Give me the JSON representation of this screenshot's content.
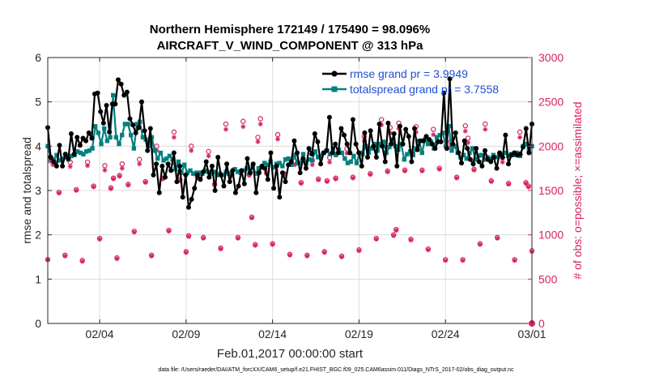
{
  "chart_data": {
    "type": "line",
    "title": "Northern Hemisphere 172149 / 175490 = 98.096%",
    "subtitle": "AIRCRAFT_V_WIND_COMPONENT @ 313 hPa",
    "xlabel": "Feb.01,2017 00:00:00 start",
    "ylabel": "rmse and totalspread",
    "y2label": "# of obs: o=possible; ×=assimilated",
    "footer": "data file: /Users/raeder/DAI/ATM_forcXX/CAM6_setup/f.e21.FHIST_BGC.f09_025.CAM6assim.011/Diags_NTrS_2017-02/obs_diag_output.nc",
    "xlim": [
      1,
      29
    ],
    "ylim": [
      0,
      6
    ],
    "y2lim": [
      0,
      3000
    ],
    "xticks": [
      4,
      9,
      14,
      19,
      24,
      29
    ],
    "xtick_labels": [
      "02/04",
      "02/09",
      "02/14",
      "02/19",
      "02/24",
      "03/01"
    ],
    "yticks": [
      0,
      1,
      2,
      3,
      4,
      5,
      6
    ],
    "ytick_labels": [
      "0",
      "1",
      "2",
      "3",
      "4",
      "5",
      "6"
    ],
    "y2ticks": [
      0,
      500,
      1000,
      1500,
      2000,
      2500,
      3000
    ],
    "y2tick_labels": [
      "0",
      "500",
      "1000",
      "1500",
      "2000",
      "2500",
      "3000"
    ],
    "grid": true,
    "legend_position": "top-right",
    "colors": {
      "rmse": "#000000",
      "spread": "#00807f",
      "obs": "#d6245c",
      "legend_text": "#1f4fd6",
      "grid": "#dcdcdc"
    },
    "series": [
      {
        "name": "rmse grand pr = 3.9949",
        "axis": "left",
        "values": [
          4.42,
          3.75,
          3.65,
          3.55,
          4.02,
          3.55,
          3.82,
          3.72,
          4.28,
          3.82,
          4.2,
          4.02,
          4.18,
          4.12,
          4.3,
          4.18,
          5.18,
          5.2,
          4.78,
          4.52,
          4.92,
          4.32,
          4.95,
          4.95,
          5.5,
          5.4,
          5.15,
          5.22,
          4.62,
          4.48,
          4.3,
          4.42,
          5.0,
          4.35,
          3.9,
          4.4,
          3.35,
          3.6,
          2.95,
          3.55,
          3.3,
          3.6,
          3.45,
          3.85,
          3.2,
          3.55,
          2.85,
          3.35,
          2.62,
          2.8,
          3.05,
          3.35,
          3.25,
          3.42,
          3.65,
          3.3,
          3.55,
          3.0,
          3.75,
          3.35,
          3.1,
          3.6,
          3.2,
          3.45,
          2.95,
          3.1,
          3.45,
          3.15,
          3.72,
          3.4,
          3.6,
          2.95,
          3.4,
          3.55,
          3.5,
          3.25,
          3.85,
          3.05,
          3.55,
          2.85,
          3.4,
          3.2,
          3.58,
          3.65,
          4.12,
          3.85,
          3.4,
          3.72,
          3.5,
          3.95,
          3.82,
          4.28,
          4.1,
          3.6,
          3.85,
          3.9,
          4.65,
          3.85,
          4.05,
          3.85,
          4.4,
          4.25,
          4.05,
          3.85,
          4.6,
          4.05,
          3.85,
          3.55,
          4.3,
          3.75,
          4.35,
          4.0,
          3.75,
          4.5,
          4.0,
          3.65,
          4.52,
          4.05,
          4.28,
          3.55,
          4.45,
          4.05,
          4.38,
          4.22,
          3.65,
          4.4,
          3.92,
          4.12,
          4.12,
          4.22,
          4.15,
          4.05,
          3.95,
          4.1,
          4.1,
          5.2,
          3.95,
          5.52,
          4.05,
          4.3,
          3.85,
          3.62,
          4.12,
          3.95,
          3.7,
          3.6,
          3.95,
          3.65,
          3.55,
          3.9,
          3.7,
          3.65,
          3.75,
          3.5,
          3.85,
          3.75,
          4.25,
          3.6,
          3.8,
          3.85,
          3.8,
          3.82,
          3.98,
          4.4,
          3.85,
          4.5
        ],
        "marker": "dot"
      },
      {
        "name": "totalspread grand pr = 3.7558",
        "axis": "left",
        "values": [
          4.0,
          3.72,
          3.68,
          3.8,
          3.68,
          3.72,
          3.75,
          3.7,
          3.78,
          3.8,
          3.88,
          3.85,
          3.82,
          3.88,
          3.9,
          3.95,
          4.45,
          4.3,
          4.05,
          4.4,
          4.12,
          4.2,
          5.15,
          4.2,
          4.05,
          4.25,
          4.5,
          4.5,
          4.25,
          3.95,
          4.5,
          4.55,
          4.2,
          4.15,
          4.0,
          4.2,
          3.9,
          3.72,
          3.85,
          3.68,
          3.72,
          3.78,
          3.7,
          3.48,
          3.65,
          3.4,
          3.58,
          3.4,
          3.45,
          3.38,
          3.4,
          3.4,
          3.38,
          3.45,
          3.42,
          3.38,
          3.42,
          3.35,
          3.38,
          3.35,
          3.42,
          3.38,
          3.4,
          3.48,
          3.42,
          3.4,
          3.45,
          3.5,
          3.4,
          3.55,
          3.38,
          3.5,
          3.52,
          3.62,
          3.58,
          3.65,
          3.52,
          3.6,
          3.62,
          3.55,
          3.7,
          3.72,
          3.58,
          3.8,
          3.62,
          3.62,
          3.82,
          3.6,
          3.7,
          3.68,
          3.88,
          3.75,
          3.78,
          3.85,
          3.9,
          3.82,
          3.95,
          3.8,
          3.92,
          3.85,
          3.72,
          3.62,
          3.65,
          3.78,
          3.62,
          3.85,
          3.82,
          4.0,
          3.85,
          3.95,
          4.05,
          3.9,
          4.05,
          4.1,
          3.85,
          3.98,
          4.15,
          4.0,
          3.92,
          4.05,
          3.7,
          3.82,
          3.88,
          3.8,
          3.95,
          4.12,
          3.85,
          4.15,
          4.05,
          4.1,
          3.95,
          4.2,
          4.25,
          4.3,
          4.0,
          4.45,
          3.9,
          4.0,
          3.85,
          3.75,
          3.8,
          3.72,
          3.85,
          3.95,
          3.7,
          3.78,
          3.8,
          3.7,
          3.75,
          3.72,
          3.8,
          3.75,
          3.8,
          3.78,
          3.85,
          3.78,
          3.82,
          3.8,
          3.85,
          3.78,
          4.0,
          4.05,
          3.92,
          4.0
        ],
        "marker": "square"
      },
      {
        "name": "obs possible",
        "axis": "right",
        "marker": "circle",
        "values": [
          720,
          1850,
          1480,
          770,
          1820,
          1510,
          710,
          1820,
          1550,
          960,
          1780,
          1530,
          740,
          1800,
          1570,
          1040,
          1850,
          1600,
          770,
          2000,
          1640,
          1050,
          2160,
          1620,
          810,
          2000,
          1650,
          970,
          1940,
          1570,
          850,
          2250,
          1680,
          970,
          2280,
          1680,
          890,
          2310,
          1700,
          900,
          2130,
          1690,
          780,
          1830,
          1590,
          770,
          1840,
          1630,
          810,
          1870,
          1640,
          760,
          1970,
          1650,
          830,
          2110,
          1690,
          960,
          2300,
          1720,
          1000,
          2260,
          1730,
          950,
          2220,
          1730,
          840,
          2190,
          1750,
          720,
          2050,
          1650,
          720,
          2090,
          1740,
          900,
          2250,
          1610,
          970,
          1870,
          1580,
          720,
          2160,
          1590,
          820,
          1880,
          1670,
          990,
          2100,
          1610,
          1060,
          2230,
          1640,
          1200,
          2210,
          1550
        ],
        "x": [
          1.0,
          1.3,
          1.65,
          2.0,
          2.3,
          2.65,
          3.0,
          3.3,
          3.65,
          4.0,
          4.3,
          4.65,
          5.0,
          5.3,
          5.65,
          6.0,
          6.3,
          6.65,
          7.0,
          7.3,
          7.65,
          8.0,
          8.3,
          8.65,
          9.0,
          9.3,
          9.65,
          10.0,
          10.3,
          10.65,
          11.0,
          11.3,
          11.65,
          12.0,
          12.3,
          12.65,
          13.0,
          13.3,
          13.65,
          14.0,
          14.3,
          14.65,
          15.0,
          15.3,
          15.65,
          16.0,
          16.3,
          16.65,
          17.0,
          17.3,
          17.65,
          18.0,
          18.3,
          18.65,
          19.0,
          19.3,
          19.65,
          20.0,
          20.3,
          20.65,
          21.0,
          21.3,
          21.65,
          22.0,
          22.3,
          22.65,
          23.0,
          23.3,
          23.65,
          24.0,
          24.3,
          24.65,
          25.0,
          25.3,
          25.65,
          26.0,
          26.3,
          26.65,
          27.0,
          27.3,
          27.65,
          28.0,
          28.3,
          28.65,
          29.0,
          1.15,
          5.15,
          9.15,
          13.15,
          17.15,
          21.15,
          25.15,
          4.8,
          12.8,
          20.8,
          28.8
        ]
      },
      {
        "name": "obs assimilated",
        "axis": "right",
        "marker": "star",
        "values": [
          720,
          1790,
          1470,
          760,
          1770,
          1500,
          700,
          1780,
          1540,
          950,
          1730,
          1520,
          730,
          1750,
          1560,
          1030,
          1800,
          1590,
          760,
          1950,
          1630,
          1040,
          2100,
          1610,
          800,
          1950,
          1640,
          960,
          1890,
          1560,
          840,
          2190,
          1670,
          960,
          2220,
          1670,
          880,
          2250,
          1690,
          890,
          2080,
          1680,
          770,
          1790,
          1580,
          760,
          1790,
          1620,
          800,
          1820,
          1630,
          750,
          1920,
          1640,
          820,
          2060,
          1680,
          950,
          2240,
          1710,
          990,
          2200,
          1720,
          940,
          2160,
          1720,
          830,
          2130,
          1740,
          710,
          2000,
          1640,
          710,
          2040,
          1730,
          890,
          2190,
          1600,
          960,
          1820,
          1570,
          710,
          2100,
          1580,
          810,
          1830,
          1660,
          980,
          2050,
          1600,
          1050,
          2170,
          1630,
          1190,
          2150,
          1540
        ],
        "x": [
          1.0,
          1.3,
          1.65,
          2.0,
          2.3,
          2.65,
          3.0,
          3.3,
          3.65,
          4.0,
          4.3,
          4.65,
          5.0,
          5.3,
          5.65,
          6.0,
          6.3,
          6.65,
          7.0,
          7.3,
          7.65,
          8.0,
          8.3,
          8.65,
          9.0,
          9.3,
          9.65,
          10.0,
          10.3,
          10.65,
          11.0,
          11.3,
          11.65,
          12.0,
          12.3,
          12.65,
          13.0,
          13.3,
          13.65,
          14.0,
          14.3,
          14.65,
          15.0,
          15.3,
          15.65,
          16.0,
          16.3,
          16.65,
          17.0,
          17.3,
          17.65,
          18.0,
          18.3,
          18.65,
          19.0,
          19.3,
          19.65,
          20.0,
          20.3,
          20.65,
          21.0,
          21.3,
          21.65,
          22.0,
          22.3,
          22.65,
          23.0,
          23.3,
          23.65,
          24.0,
          24.3,
          24.65,
          25.0,
          25.3,
          25.65,
          26.0,
          26.3,
          26.65,
          27.0,
          27.3,
          27.65,
          28.0,
          28.3,
          28.65,
          29.0,
          1.15,
          5.15,
          9.15,
          13.15,
          17.15,
          21.15,
          25.15,
          4.8,
          12.8,
          20.8,
          28.8
        ]
      }
    ],
    "zero_marker": {
      "x": 29,
      "y2": 0
    }
  }
}
